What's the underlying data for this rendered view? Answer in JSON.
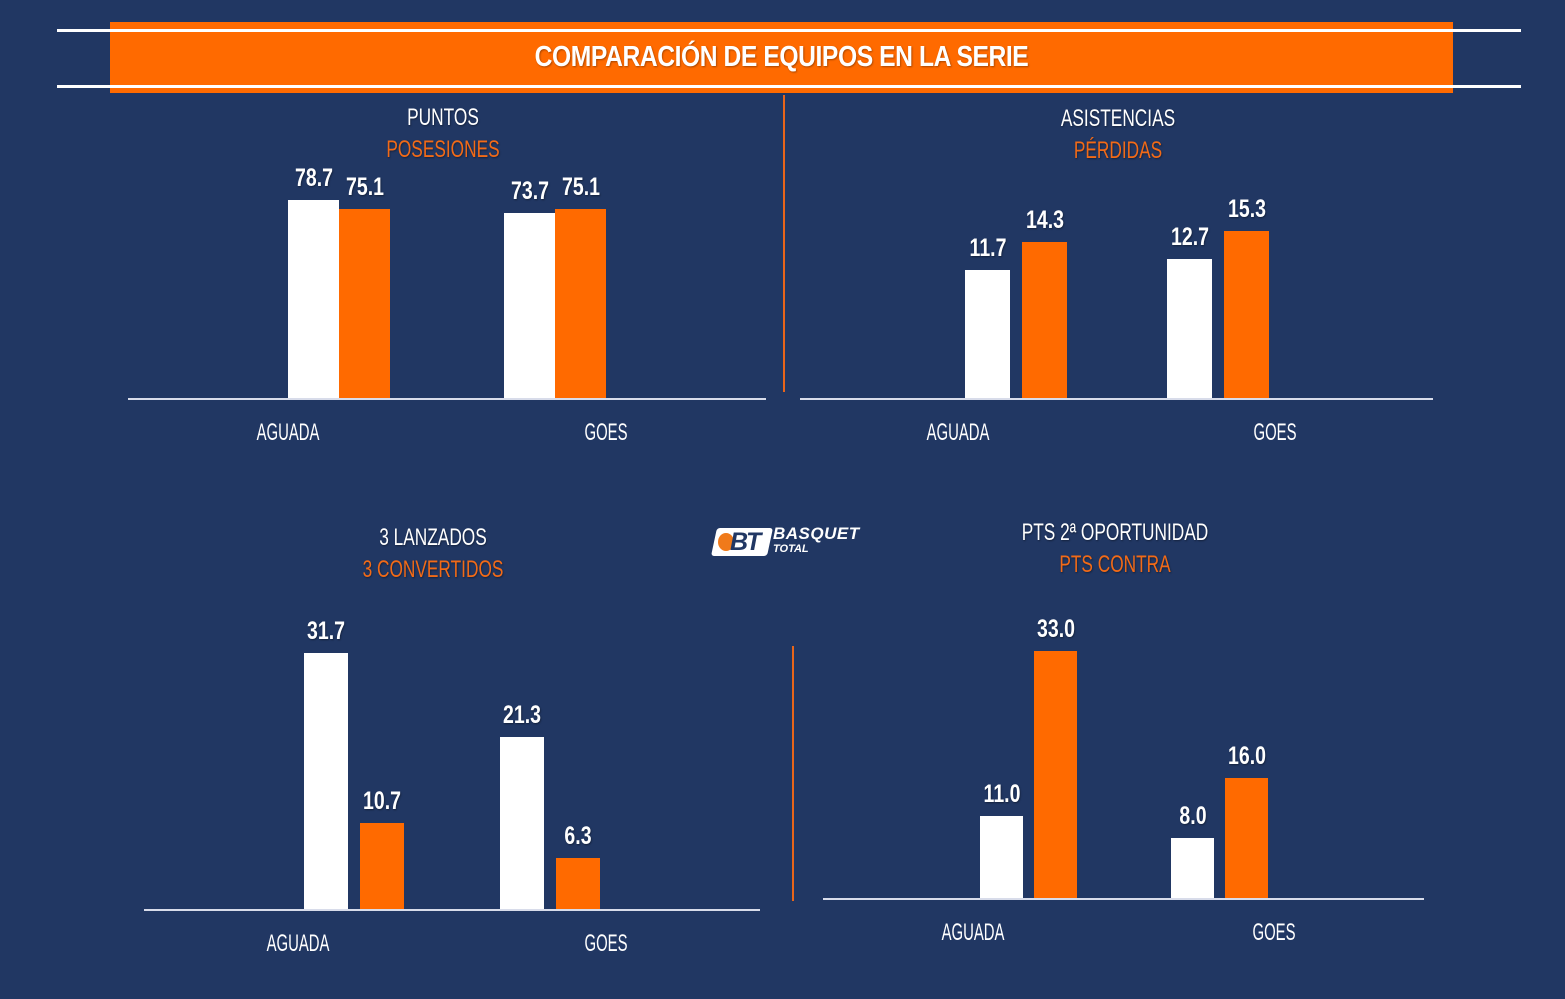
{
  "header": {
    "title": "COMPARACIÓN DE EQUIPOS EN LA SERIE"
  },
  "logo": {
    "mark": "BT",
    "line1": "BASQUET",
    "line2": "TOTAL"
  },
  "colors": {
    "background": "#213763",
    "accent": "#ff6a00",
    "primary_series": "#ffffff",
    "secondary_series_title": "#f26a17"
  },
  "chart_data": [
    {
      "type": "bar",
      "title": "PUNTOS",
      "subtitle": "POSESIONES",
      "categories": [
        "AGUADA",
        "GOES"
      ],
      "series": [
        {
          "name": "PUNTOS",
          "color": "#ffffff",
          "values": [
            78.7,
            73.7
          ],
          "labels": [
            "78.7",
            "73.7"
          ]
        },
        {
          "name": "POSESIONES",
          "color": "#ff6a00",
          "values": [
            75.1,
            75.1
          ],
          "labels": [
            "75.1",
            "75.1"
          ]
        }
      ],
      "grid": false,
      "legend": "title-colors"
    },
    {
      "type": "bar",
      "title": "ASISTENCIAS",
      "subtitle": "PÉRDIDAS",
      "categories": [
        "AGUADA",
        "GOES"
      ],
      "series": [
        {
          "name": "ASISTENCIAS",
          "color": "#ffffff",
          "values": [
            11.7,
            12.7
          ],
          "labels": [
            "11.7",
            "12.7"
          ]
        },
        {
          "name": "PÉRDIDAS",
          "color": "#ff6a00",
          "values": [
            14.3,
            15.3
          ],
          "labels": [
            "14.3",
            "15.3"
          ]
        }
      ],
      "grid": false,
      "legend": "title-colors"
    },
    {
      "type": "bar",
      "title": "3 LANZADOS",
      "subtitle": "3 CONVERTIDOS",
      "categories": [
        "AGUADA",
        "GOES"
      ],
      "series": [
        {
          "name": "3 LANZADOS",
          "color": "#ffffff",
          "values": [
            31.7,
            21.3
          ],
          "labels": [
            "31.7",
            "21.3"
          ]
        },
        {
          "name": "3 CONVERTIDOS",
          "color": "#ff6a00",
          "values": [
            10.7,
            6.3
          ],
          "labels": [
            "10.7",
            "6.3"
          ]
        }
      ],
      "grid": false,
      "legend": "title-colors"
    },
    {
      "type": "bar",
      "title": "PTS 2ª OPORTUNIDAD",
      "subtitle": "PTS CONTRA",
      "categories": [
        "AGUADA",
        "GOES"
      ],
      "series": [
        {
          "name": "PTS 2ª OPORTUNIDAD",
          "color": "#ffffff",
          "values": [
            11.0,
            8.0
          ],
          "labels": [
            "11.0",
            "8.0"
          ]
        },
        {
          "name": "PTS CONTRA",
          "color": "#ff6a00",
          "values": [
            33.0,
            16.0
          ],
          "labels": [
            "33.0",
            "16.0"
          ]
        }
      ],
      "grid": false,
      "legend": "title-colors"
    }
  ]
}
